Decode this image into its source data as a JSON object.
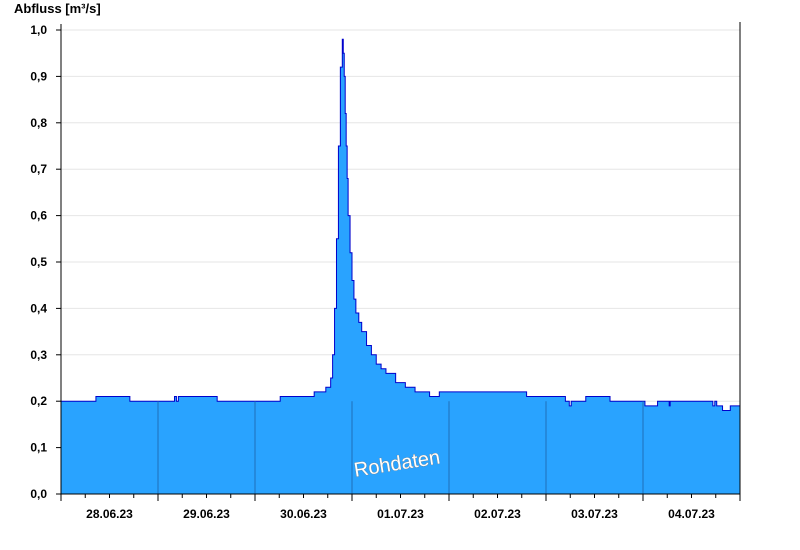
{
  "chart_data": {
    "type": "area",
    "ylabel": "Abfluss [m³/s]",
    "xlabel": "",
    "ylim": [
      0.0,
      1.0
    ],
    "yticks": [
      "0,0",
      "0,1",
      "0,2",
      "0,3",
      "0,4",
      "0,5",
      "0,6",
      "0,7",
      "0,8",
      "0,9",
      "1,0"
    ],
    "xlim_days": [
      0,
      7
    ],
    "xtick_labels": [
      "28.06.23",
      "29.06.23",
      "30.06.23",
      "01.07.23",
      "02.07.23",
      "03.07.23",
      "04.07.23"
    ],
    "grid": true,
    "fill_color": "#29a3ff",
    "line_color": "#0000cc",
    "watermark": "Rohdaten",
    "series": [
      {
        "x": [
          0,
          0.35,
          0.36,
          0.7,
          0.71,
          1.15,
          1.17,
          1.19,
          1.21,
          1.6,
          1.61,
          2.0,
          2.25,
          2.26,
          2.6,
          2.61,
          2.72,
          2.73,
          2.78,
          2.8,
          2.82,
          2.84,
          2.86,
          2.88,
          2.9,
          2.91,
          2.92,
          2.93,
          2.94,
          2.95,
          2.96,
          2.98,
          3.0,
          3.02,
          3.04,
          3.07,
          3.1,
          3.15,
          3.2,
          3.25,
          3.3,
          3.35,
          3.45,
          3.55,
          3.65,
          3.8,
          3.85,
          3.9,
          4.8,
          4.81,
          5.2,
          5.22,
          5.24,
          5.26,
          5.4,
          5.41,
          5.65,
          5.66,
          5.9,
          6.0,
          6.02,
          6.05,
          6.1,
          6.15,
          6.2,
          6.25,
          6.27,
          6.28,
          6.7,
          6.72,
          6.74,
          6.76,
          6.78,
          6.82,
          6.85,
          6.9,
          7.0
        ],
        "values": [
          0.2,
          0.2,
          0.21,
          0.21,
          0.2,
          0.2,
          0.21,
          0.2,
          0.21,
          0.21,
          0.2,
          0.2,
          0.2,
          0.21,
          0.21,
          0.22,
          0.22,
          0.23,
          0.25,
          0.3,
          0.4,
          0.55,
          0.75,
          0.92,
          0.98,
          0.95,
          0.9,
          0.82,
          0.75,
          0.68,
          0.6,
          0.52,
          0.46,
          0.42,
          0.39,
          0.37,
          0.35,
          0.32,
          0.3,
          0.28,
          0.27,
          0.26,
          0.24,
          0.23,
          0.22,
          0.21,
          0.21,
          0.22,
          0.21,
          0.21,
          0.2,
          0.2,
          0.19,
          0.2,
          0.2,
          0.21,
          0.21,
          0.2,
          0.2,
          0.2,
          0.19,
          0.19,
          0.19,
          0.2,
          0.2,
          0.2,
          0.19,
          0.2,
          0.2,
          0.19,
          0.2,
          0.19,
          0.19,
          0.18,
          0.18,
          0.19,
          0.19
        ]
      }
    ]
  }
}
